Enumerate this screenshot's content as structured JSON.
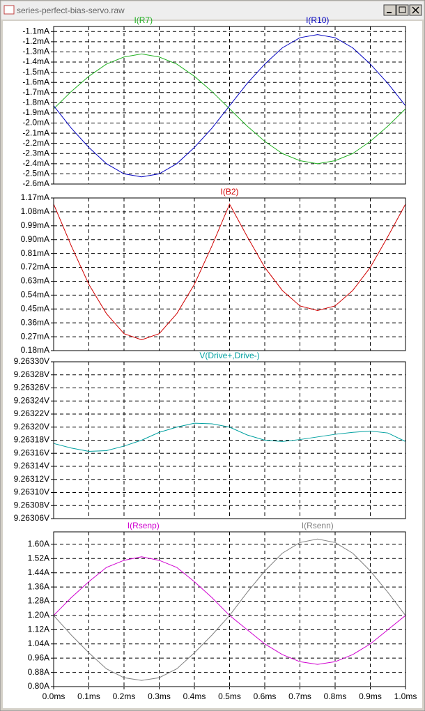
{
  "window": {
    "title": "series-perfect-bias-servo.raw"
  },
  "chart_data": [
    {
      "type": "line",
      "xlim": [
        0,
        1
      ],
      "ylim": [
        -2.6,
        -1.05
      ],
      "grid": true,
      "x": [
        0,
        0.05,
        0.1,
        0.15,
        0.2,
        0.25,
        0.3,
        0.35,
        0.4,
        0.45,
        0.5,
        0.55,
        0.6,
        0.65,
        0.7,
        0.75,
        0.8,
        0.85,
        0.9,
        0.95,
        1
      ],
      "yticks": [
        {
          "value": -1.1,
          "label": "-1.1mA"
        },
        {
          "value": -1.2,
          "label": "-1.2mA"
        },
        {
          "value": -1.3,
          "label": "-1.3mA"
        },
        {
          "value": -1.4,
          "label": "-1.4mA"
        },
        {
          "value": -1.5,
          "label": "-1.5mA"
        },
        {
          "value": -1.6,
          "label": "-1.6mA"
        },
        {
          "value": -1.7,
          "label": "-1.7mA"
        },
        {
          "value": -1.8,
          "label": "-1.8mA"
        },
        {
          "value": -1.9,
          "label": "-1.9mA"
        },
        {
          "value": -2.0,
          "label": "-2.0mA"
        },
        {
          "value": -2.1,
          "label": "-2.1mA"
        },
        {
          "value": -2.2,
          "label": "-2.2mA"
        },
        {
          "value": -2.3,
          "label": "-2.3mA"
        },
        {
          "value": -2.4,
          "label": "-2.4mA"
        },
        {
          "value": -2.5,
          "label": "-2.5mA"
        },
        {
          "value": -2.6,
          "label": "-2.6mA"
        }
      ],
      "series": [
        {
          "name": "I(R7)",
          "color": "#22b022",
          "values": [
            -1.86,
            -1.69,
            -1.54,
            -1.42,
            -1.35,
            -1.32,
            -1.35,
            -1.42,
            -1.54,
            -1.69,
            -1.86,
            -2.03,
            -2.18,
            -2.3,
            -2.37,
            -2.4,
            -2.37,
            -2.3,
            -2.18,
            -2.03,
            -1.86
          ]
        },
        {
          "name": "I(R10)",
          "color": "#0000c0",
          "values": [
            -1.83,
            -2.05,
            -2.24,
            -2.4,
            -2.5,
            -2.53,
            -2.5,
            -2.4,
            -2.24,
            -2.05,
            -1.83,
            -1.61,
            -1.42,
            -1.26,
            -1.16,
            -1.13,
            -1.16,
            -1.26,
            -1.42,
            -1.61,
            -1.83
          ]
        }
      ]
    },
    {
      "type": "line",
      "xlim": [
        0,
        1
      ],
      "ylim": [
        0.18,
        1.17
      ],
      "grid": true,
      "x": [
        0,
        0.05,
        0.1,
        0.15,
        0.2,
        0.25,
        0.3,
        0.35,
        0.4,
        0.45,
        0.5,
        0.55,
        0.6,
        0.65,
        0.7,
        0.75,
        0.8,
        0.85,
        0.9,
        0.95,
        1
      ],
      "yticks": [
        {
          "value": 1.17,
          "label": "1.17mA"
        },
        {
          "value": 1.08,
          "label": "1.08mA"
        },
        {
          "value": 0.99,
          "label": "0.99mA"
        },
        {
          "value": 0.9,
          "label": "0.90mA"
        },
        {
          "value": 0.81,
          "label": "0.81mA"
        },
        {
          "value": 0.72,
          "label": "0.72mA"
        },
        {
          "value": 0.63,
          "label": "0.63mA"
        },
        {
          "value": 0.54,
          "label": "0.54mA"
        },
        {
          "value": 0.45,
          "label": "0.45mA"
        },
        {
          "value": 0.36,
          "label": "0.36mA"
        },
        {
          "value": 0.27,
          "label": "0.27mA"
        },
        {
          "value": 0.18,
          "label": "0.18mA"
        }
      ],
      "series": [
        {
          "name": "I(B2)",
          "color": "#d00000",
          "values": [
            1.13,
            0.86,
            0.61,
            0.42,
            0.29,
            0.25,
            0.29,
            0.42,
            0.61,
            0.86,
            1.13,
            0.92,
            0.72,
            0.57,
            0.47,
            0.44,
            0.47,
            0.57,
            0.72,
            0.92,
            1.13
          ]
        }
      ]
    },
    {
      "type": "line",
      "xlim": [
        0,
        1
      ],
      "ylim": [
        9.26306,
        9.2633
      ],
      "grid": true,
      "x": [
        0,
        0.05,
        0.1,
        0.15,
        0.2,
        0.25,
        0.3,
        0.35,
        0.4,
        0.45,
        0.5,
        0.55,
        0.6,
        0.65,
        0.7,
        0.75,
        0.8,
        0.85,
        0.9,
        0.95,
        1
      ],
      "yticks": [
        {
          "value": 9.2633,
          "label": "9.26330V"
        },
        {
          "value": 9.26328,
          "label": "9.26328V"
        },
        {
          "value": 9.26326,
          "label": "9.26326V"
        },
        {
          "value": 9.26324,
          "label": "9.26324V"
        },
        {
          "value": 9.26322,
          "label": "9.26322V"
        },
        {
          "value": 9.2632,
          "label": "9.26320V"
        },
        {
          "value": 9.26318,
          "label": "9.26318V"
        },
        {
          "value": 9.26316,
          "label": "9.26316V"
        },
        {
          "value": 9.26314,
          "label": "9.26314V"
        },
        {
          "value": 9.26312,
          "label": "9.26312V"
        },
        {
          "value": 9.2631,
          "label": "9.26310V"
        },
        {
          "value": 9.26308,
          "label": "9.26308V"
        },
        {
          "value": 9.26306,
          "label": "9.26306V"
        }
      ],
      "series": [
        {
          "name": "V(Drive+,Drive-)",
          "color": "#00a0a0",
          "values": [
            9.263175,
            9.263168,
            9.263163,
            9.263164,
            9.263171,
            9.26318,
            9.263192,
            9.2632,
            9.263206,
            9.263205,
            9.2632,
            9.263188,
            9.26318,
            9.263178,
            9.263181,
            9.263185,
            9.263189,
            9.263192,
            9.263194,
            9.263191,
            9.263178
          ]
        }
      ]
    },
    {
      "type": "line",
      "xlim": [
        0,
        1
      ],
      "ylim": [
        0.8,
        1.67
      ],
      "grid": true,
      "x": [
        0,
        0.05,
        0.1,
        0.15,
        0.2,
        0.25,
        0.3,
        0.35,
        0.4,
        0.45,
        0.5,
        0.55,
        0.6,
        0.65,
        0.7,
        0.75,
        0.8,
        0.85,
        0.9,
        0.95,
        1
      ],
      "xticks": [
        {
          "value": 0,
          "label": "0.0ms"
        },
        {
          "value": 0.1,
          "label": "0.1ms"
        },
        {
          "value": 0.2,
          "label": "0.2ms"
        },
        {
          "value": 0.3,
          "label": "0.3ms"
        },
        {
          "value": 0.4,
          "label": "0.4ms"
        },
        {
          "value": 0.5,
          "label": "0.5ms"
        },
        {
          "value": 0.6,
          "label": "0.6ms"
        },
        {
          "value": 0.7,
          "label": "0.7ms"
        },
        {
          "value": 0.8,
          "label": "0.8ms"
        },
        {
          "value": 0.9,
          "label": "0.9ms"
        },
        {
          "value": 1,
          "label": "1.0ms"
        }
      ],
      "yticks": [
        {
          "value": 1.6,
          "label": "1.60A"
        },
        {
          "value": 1.52,
          "label": "1.52A"
        },
        {
          "value": 1.44,
          "label": "1.44A"
        },
        {
          "value": 1.36,
          "label": "1.36A"
        },
        {
          "value": 1.28,
          "label": "1.28A"
        },
        {
          "value": 1.2,
          "label": "1.20A"
        },
        {
          "value": 1.12,
          "label": "1.12A"
        },
        {
          "value": 1.04,
          "label": "1.04A"
        },
        {
          "value": 0.96,
          "label": "0.96A"
        },
        {
          "value": 0.88,
          "label": "0.88A"
        },
        {
          "value": 0.8,
          "label": "0.80A"
        }
      ],
      "series": [
        {
          "name": "I(Rsenp)",
          "color": "#d000d0",
          "values": [
            1.2,
            1.3,
            1.39,
            1.47,
            1.51,
            1.53,
            1.51,
            1.47,
            1.39,
            1.3,
            1.2,
            1.12,
            1.04,
            0.98,
            0.94,
            0.925,
            0.94,
            0.98,
            1.04,
            1.12,
            1.2
          ]
        },
        {
          "name": "I(Rsenn)",
          "color": "#808080",
          "values": [
            1.2,
            1.09,
            0.99,
            0.9,
            0.85,
            0.835,
            0.85,
            0.9,
            0.99,
            1.09,
            1.2,
            1.33,
            1.45,
            1.55,
            1.61,
            1.63,
            1.61,
            1.55,
            1.45,
            1.33,
            1.2
          ]
        }
      ]
    }
  ]
}
